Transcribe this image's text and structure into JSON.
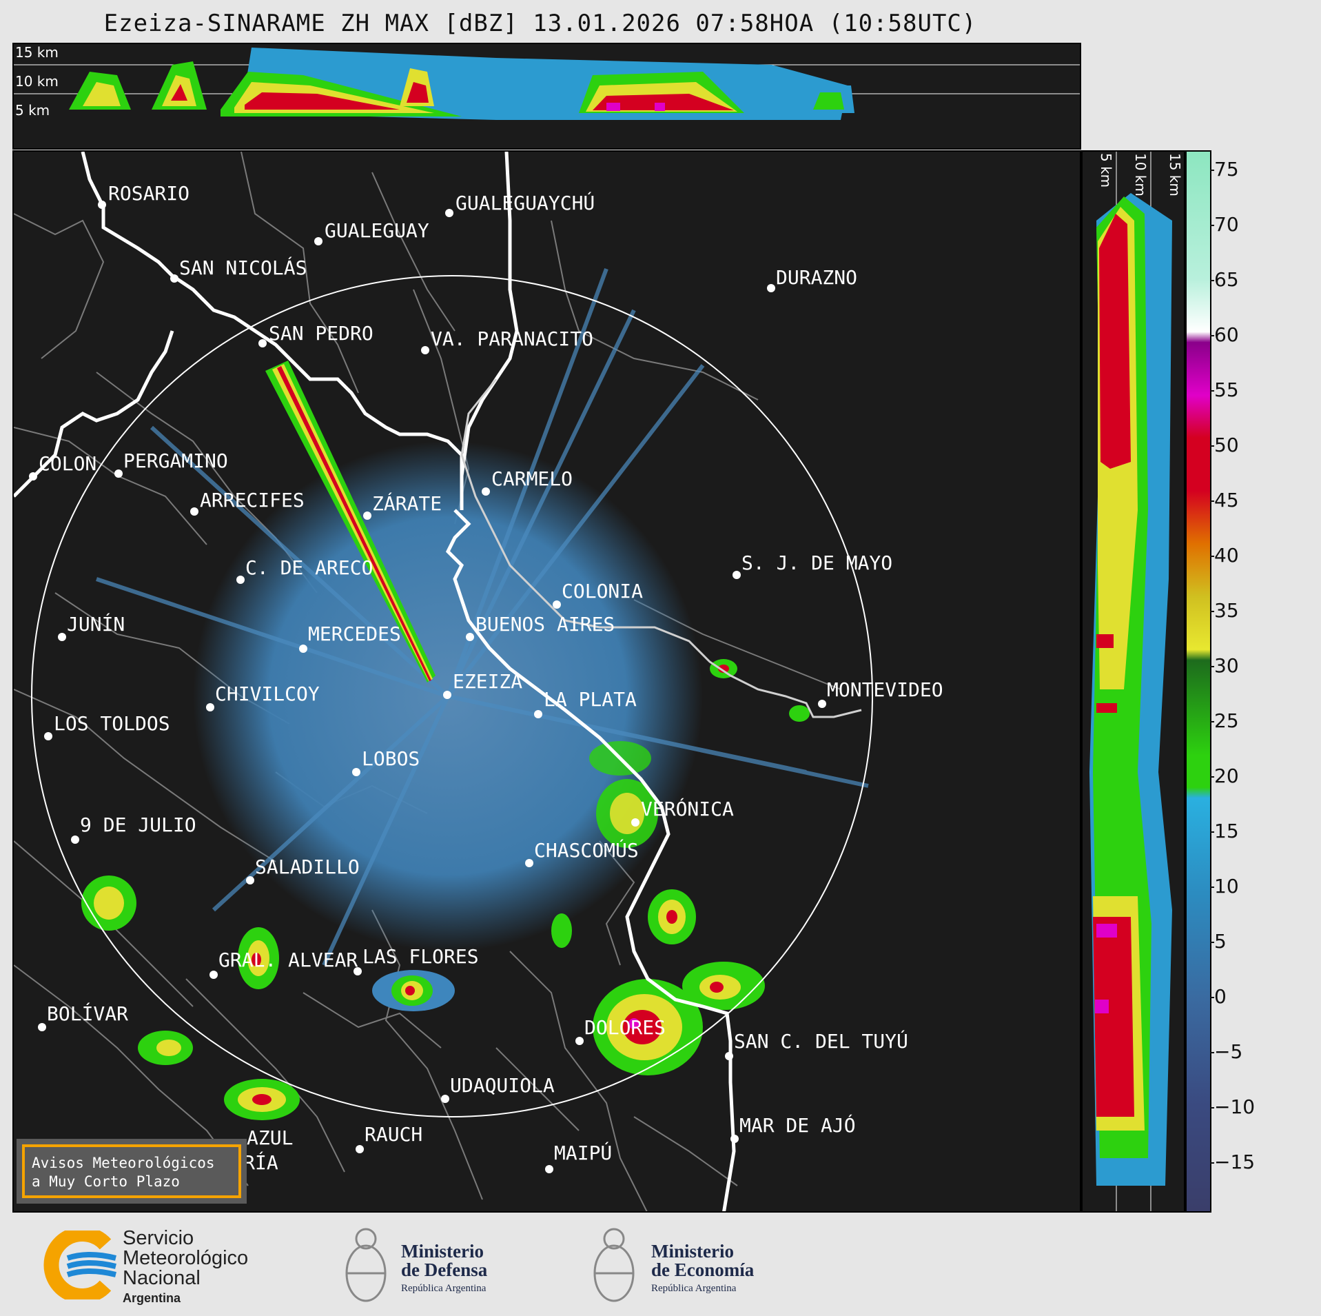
{
  "title": "Ezeiza-SINARAME ZH MAX [dBZ] 13.01.2026 07:58HOA (10:58UTC)",
  "top_panel": {
    "height_labels": [
      "15 km",
      "10 km",
      "5 km"
    ]
  },
  "side_panel": {
    "height_labels": [
      "5 km",
      "10 km",
      "15 km"
    ]
  },
  "colorbar": {
    "unit": "dBZ",
    "ticks": [
      "75",
      "70",
      "65",
      "60",
      "55",
      "50",
      "45",
      "40",
      "35",
      "30",
      "25",
      "20",
      "15",
      "10",
      "5",
      "0",
      "−5",
      "−10",
      "−15"
    ]
  },
  "cities": [
    "ROSARIO",
    "GUALEGUAYCHÚ",
    "GUALEGUAY",
    "SAN NICOLÁS",
    "DURAZNO",
    "SAN PEDRO",
    "VA. PARANACITO",
    "COLON",
    "PERGAMINO",
    "CARMELO",
    "ARRECIFES",
    "ZÁRATE",
    "S. J. DE MAYO",
    "C. DE ARECO",
    "COLONIA",
    "JUNÍN",
    "BUENOS AIRES",
    "MERCEDES",
    "EZEIZA",
    "MONTEVIDEO",
    "CHIVILCOY",
    "LA PLATA",
    "LOS TOLDOS",
    "LOBOS",
    "VERÓNICA",
    "9 DE JULIO",
    "CHASCOMÚS",
    "SALADILLO",
    "GRAL. ALVEAR",
    "LAS FLORES",
    "BOLÍVAR",
    "DOLORES",
    "SAN C. DEL TUYÚ",
    "UDAQUIOLA",
    "MAR DE AJÓ",
    "AZUL",
    "RAUCH",
    "OLAVARRÍA",
    "MAIPÚ"
  ],
  "warning": {
    "line1": "Avisos Meteorológicos",
    "line2": "a Muy Corto Plazo"
  },
  "logos": {
    "smn": {
      "line1": "Servicio",
      "line2": "Meteorológico",
      "line3": "Nacional",
      "line4": "Argentina"
    },
    "defensa": {
      "line1": "Ministerio",
      "line2": "de Defensa",
      "line3": "República Argentina"
    },
    "economia": {
      "line1": "Ministerio",
      "line2": "de Economía",
      "line3": "República Argentina"
    }
  },
  "colors": {
    "background": "#1b1b1b",
    "weak_echo": "#4a86b8",
    "moderate_echo": "#2dd10f",
    "strong_echo": "#e0e030",
    "very_strong_echo": "#d40020",
    "extreme_echo": "#e000c8",
    "border_line": "#7a7a7a",
    "coast_line": "#ffffff",
    "warning_border": "#f5a300",
    "smn_orange": "#f5a300",
    "smn_blue": "#1e88d6"
  }
}
